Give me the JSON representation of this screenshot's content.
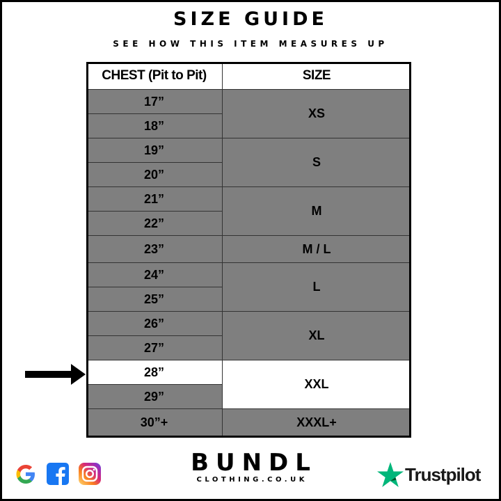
{
  "title": "SIZE GUIDE",
  "subtitle": "SEE HOW THIS ITEM MEASURES UP",
  "table": {
    "headers": [
      "CHEST (Pit to Pit)",
      "SIZE"
    ],
    "chest_rows": [
      "17”",
      "18”",
      "19”",
      "20”",
      "21”",
      "22”",
      "23”",
      "24”",
      "25”",
      "26”",
      "27”",
      "28”",
      "29”",
      "30”+"
    ],
    "size_groups": [
      {
        "label": "XS",
        "rows": [
          0,
          1
        ]
      },
      {
        "label": "S",
        "rows": [
          2,
          3
        ]
      },
      {
        "label": "M",
        "rows": [
          4,
          5
        ]
      },
      {
        "label": "M / L",
        "rows": [
          6
        ]
      },
      {
        "label": "L",
        "rows": [
          7,
          8
        ]
      },
      {
        "label": "XL",
        "rows": [
          9,
          10
        ]
      },
      {
        "label": "XXL",
        "rows": [
          11,
          12
        ]
      },
      {
        "label": "XXXL+",
        "rows": [
          13
        ]
      }
    ],
    "highlighted_chest": "28”",
    "highlighted_size": "XXL",
    "colors": {
      "cell": "#7f7f7f",
      "highlight": "#ffffff",
      "border": "#000000"
    }
  },
  "footer": {
    "social_icons": [
      "google-icon",
      "facebook-icon",
      "instagram-icon"
    ],
    "brand_name": "BUNDL",
    "brand_url": "CLOTHING.CO.UK",
    "trustpilot": "Trustpilot",
    "trustpilot_color": "#00b67a"
  }
}
